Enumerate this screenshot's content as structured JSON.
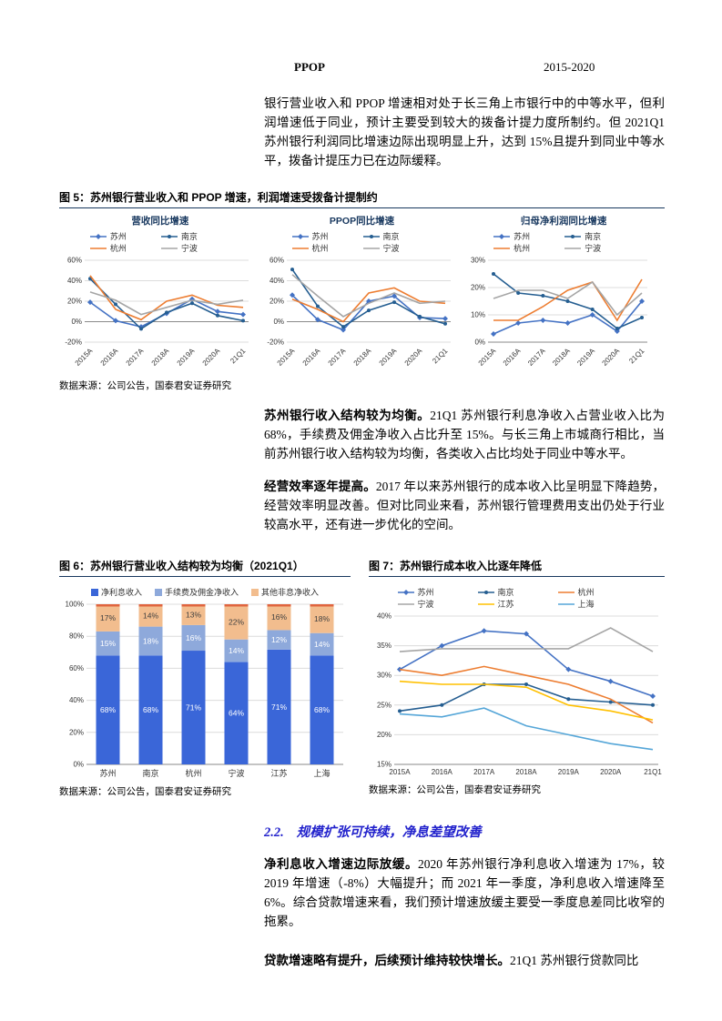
{
  "page": {
    "header_fragment": {
      "ppop": "PPOP",
      "range": "2015-2020"
    }
  },
  "paragraphs": {
    "p1": "银行营业收入和 PPOP 增速相对处于长三角上市银行中的中等水平，但利润增速低于同业，预计主要受到较大的拨备计提力度所制约。但 2021Q1 苏州银行利润同比增速边际出现明显上升，达到 15%且提升到同业中等水平，拨备计提压力已在边际缓释。",
    "p2_lead": "苏州银行收入结构较为均衡。",
    "p2_rest": "21Q1 苏州银行利息净收入占营业收入比为 68%，手续费及佣金净收入占比升至 15%。与长三角上市城商行相比，当前苏州银行收入结构较为均衡，各类收入占比均处于同业中等水平。",
    "p3_lead": "经营效率逐年提高。",
    "p3_rest": "2017 年以来苏州银行的成本收入比呈明显下降趋势，经营效率明显改善。但对比同业来看，苏州银行管理费用支出仍处于行业较高水平，还有进一步优化的空间。",
    "p4_lead": "净利息收入增速边际放缓。",
    "p4_rest": "2020 年苏州银行净利息收入增速为 17%，较 2019 年增速（-8%）大幅提升；而 2021 年一季度，净利息收入增速降至 6%。综合贷款增速来看，我们预计增速放缓主要受一季度息差同比收窄的拖累。",
    "p5_lead": "贷款增速略有提升，后续预计维持较快增长。",
    "p5_rest": "21Q1 苏州银行贷款同比"
  },
  "figures": {
    "fig5_caption": "图 5：苏州银行营业收入和 PPOP 增速，利润增速受拨备计提制约",
    "fig6_caption": "图 6：苏州银行营业收入结构较为均衡（2021Q1）",
    "fig7_caption": "图 7：苏州银行成本收入比逐年降低",
    "source": "数据来源：公司公告，国泰君安证券研究"
  },
  "section": {
    "number": "2.2.",
    "title": "规模扩张可持续，净息差望改善"
  },
  "chart_data": [
    {
      "type": "line",
      "title": "营收同比增速",
      "x": [
        "2015A",
        "2016A",
        "2017A",
        "2018A",
        "2019A",
        "2020A",
        "21Q1"
      ],
      "ylim": [
        -20,
        60
      ],
      "yticks": [
        60,
        40,
        20,
        0,
        -20
      ],
      "legend_cols": 2,
      "grid": true,
      "legend_position": "top",
      "series": [
        {
          "name": "苏州",
          "color": "#4472C4",
          "marker": "diamond",
          "values": [
            19,
            1,
            -5,
            8,
            22,
            10,
            7
          ]
        },
        {
          "name": "南京",
          "color": "#255E91",
          "marker": "circle",
          "values": [
            42,
            17,
            -7,
            9,
            18,
            6,
            1
          ]
        },
        {
          "name": "杭州",
          "color": "#ED7D31",
          "marker": "none",
          "values": [
            45,
            12,
            2,
            20,
            26,
            16,
            14
          ]
        },
        {
          "name": "宁波",
          "color": "#A5A5A5",
          "marker": "none",
          "values": [
            29,
            21,
            7,
            14,
            21,
            17,
            21
          ]
        }
      ]
    },
    {
      "type": "line",
      "title": "PPOP同比增速",
      "x": [
        "2015A",
        "2016A",
        "2017A",
        "2018A",
        "2019A",
        "2020A",
        "21Q1"
      ],
      "ylim": [
        -20,
        60
      ],
      "yticks": [
        60,
        40,
        20,
        0,
        -20
      ],
      "legend_cols": 2,
      "grid": true,
      "legend_position": "top",
      "series": [
        {
          "name": "苏州",
          "color": "#4472C4",
          "marker": "diamond",
          "values": [
            26,
            2,
            -8,
            20,
            25,
            4,
            3
          ]
        },
        {
          "name": "南京",
          "color": "#255E91",
          "marker": "circle",
          "values": [
            51,
            15,
            -5,
            11,
            19,
            5,
            -2
          ]
        },
        {
          "name": "杭州",
          "color": "#ED7D31",
          "marker": "none",
          "values": [
            22,
            12,
            0,
            28,
            33,
            20,
            18
          ]
        },
        {
          "name": "宁波",
          "color": "#A5A5A5",
          "marker": "none",
          "values": [
            46,
            25,
            5,
            18,
            28,
            18,
            20
          ]
        }
      ]
    },
    {
      "type": "line",
      "title": "归母净利润同比增速",
      "x": [
        "2015A",
        "2016A",
        "2017A",
        "2018A",
        "2019A",
        "2020A",
        "21Q1"
      ],
      "ylim": [
        0,
        30
      ],
      "yticks": [
        30,
        20,
        10,
        0
      ],
      "legend_cols": 2,
      "grid": true,
      "legend_position": "top",
      "series": [
        {
          "name": "苏州",
          "color": "#4472C4",
          "marker": "diamond",
          "values": [
            3,
            7,
            8,
            7,
            10,
            4,
            15
          ]
        },
        {
          "name": "南京",
          "color": "#255E91",
          "marker": "circle",
          "values": [
            25,
            18,
            17,
            15,
            12,
            5,
            9
          ]
        },
        {
          "name": "杭州",
          "color": "#ED7D31",
          "marker": "none",
          "values": [
            8,
            8,
            13,
            19,
            22,
            8,
            23
          ]
        },
        {
          "name": "宁波",
          "color": "#A5A5A5",
          "marker": "none",
          "values": [
            16,
            19,
            19,
            16,
            22,
            10,
            18
          ]
        }
      ]
    },
    {
      "type": "stacked-bar",
      "title": "",
      "categories": [
        "苏州",
        "南京",
        "杭州",
        "宁波",
        "江苏",
        "上海"
      ],
      "ylim": [
        0,
        100
      ],
      "yticks": [
        100,
        80,
        60,
        40,
        20,
        0
      ],
      "grid": true,
      "legend_position": "top",
      "cap_color": "#E0653F",
      "series": [
        {
          "name": "净利息收入",
          "color": "#3A66D8",
          "label_color": "#FFFFFF",
          "values": [
            68,
            68,
            71,
            64,
            71,
            68
          ]
        },
        {
          "name": "手续费及佣金净收入",
          "color": "#8EA9DB",
          "label_color": "#FFFFFF",
          "values": [
            15,
            18,
            16,
            14,
            12,
            14
          ]
        },
        {
          "name": "其他非息净收入",
          "color": "#F2BD8E",
          "label_color": "#404040",
          "values": [
            17,
            14,
            13,
            22,
            16,
            18
          ]
        }
      ]
    },
    {
      "type": "line",
      "title": "",
      "x": [
        "2015A",
        "2016A",
        "2017A",
        "2018A",
        "2019A",
        "2020A",
        "21Q1"
      ],
      "ylim": [
        15,
        40
      ],
      "yticks": [
        40,
        35,
        30,
        25,
        20,
        15
      ],
      "legend_cols": 3,
      "grid": true,
      "legend_position": "top",
      "series": [
        {
          "name": "苏州",
          "color": "#4472C4",
          "marker": "diamond",
          "values": [
            31,
            35,
            37.5,
            37,
            31,
            29,
            26.5
          ]
        },
        {
          "name": "南京",
          "color": "#255E91",
          "marker": "circle",
          "values": [
            24,
            25,
            28.5,
            28.5,
            26,
            25.5,
            25
          ]
        },
        {
          "name": "杭州",
          "color": "#ED7D31",
          "marker": "none",
          "values": [
            31,
            30,
            31.5,
            30,
            28.5,
            26,
            22
          ]
        },
        {
          "name": "宁波",
          "color": "#A5A5A5",
          "marker": "none",
          "values": [
            34,
            34.5,
            34.5,
            34.5,
            34.5,
            38,
            34
          ]
        },
        {
          "name": "江苏",
          "color": "#FFC000",
          "marker": "none",
          "values": [
            29,
            28.5,
            28.5,
            28,
            25,
            24,
            22.5
          ]
        },
        {
          "name": "上海",
          "color": "#55A6D8",
          "marker": "none",
          "values": [
            23.5,
            23,
            24.5,
            21.5,
            20,
            18.5,
            17.5
          ]
        }
      ]
    }
  ]
}
